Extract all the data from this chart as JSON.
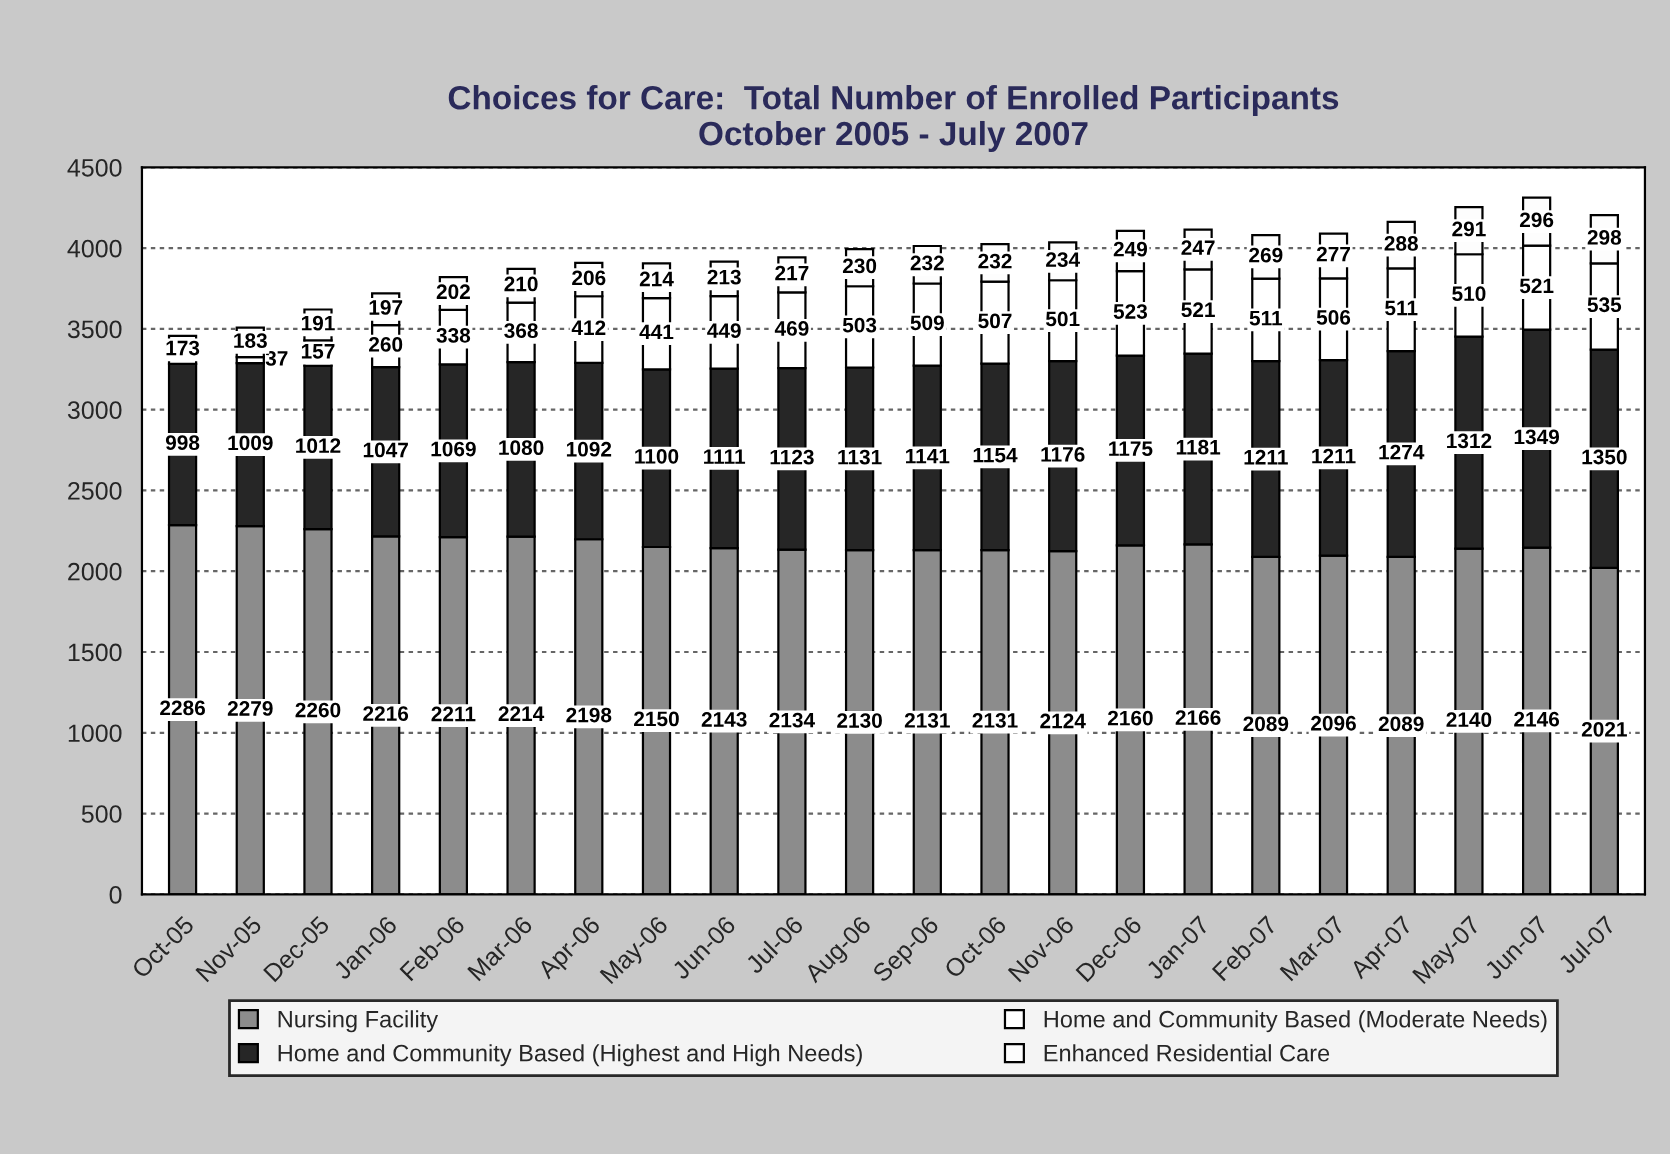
{
  "chart_data": {
    "type": "bar",
    "title": "Choices for Care:  Total Number of Enrolled Participants\nOctober 2005 - July 2007",
    "categories": [
      "Oct-05",
      "Nov-05",
      "Dec-05",
      "Jan-06",
      "Feb-06",
      "Mar-06",
      "Apr-06",
      "May-06",
      "Jun-06",
      "Jul-06",
      "Aug-06",
      "Sep-06",
      "Oct-06",
      "Nov-06",
      "Dec-06",
      "Jan-07",
      "Feb-07",
      "Mar-07",
      "Apr-07",
      "May-07",
      "Jun-07",
      "Jul-07"
    ],
    "stacked": true,
    "series": [
      {
        "name": "Nursing Facility",
        "color": "#8c8c8c",
        "values": [
          2286,
          2279,
          2260,
          2216,
          2211,
          2214,
          2198,
          2150,
          2143,
          2134,
          2130,
          2131,
          2131,
          2124,
          2160,
          2166,
          2089,
          2096,
          2089,
          2140,
          2146,
          2021
        ]
      },
      {
        "name": "Home and Community Based (Highest and High Needs)",
        "color": "#262626",
        "values": [
          998,
          1009,
          1012,
          1047,
          1069,
          1080,
          1092,
          1100,
          1111,
          1123,
          1131,
          1141,
          1154,
          1176,
          1175,
          1181,
          1211,
          1211,
          1274,
          1312,
          1349,
          1350
        ]
      },
      {
        "name": "Home and Community Based (Moderate Needs)",
        "color": "#ffffff",
        "values": [
          null,
          37,
          157,
          260,
          338,
          368,
          412,
          441,
          449,
          469,
          503,
          509,
          507,
          501,
          523,
          521,
          511,
          506,
          511,
          510,
          521,
          535
        ]
      },
      {
        "name": "Enhanced Residential Care",
        "color": "#fdfdfd",
        "values": [
          173,
          183,
          191,
          197,
          202,
          210,
          206,
          214,
          213,
          217,
          230,
          232,
          232,
          234,
          249,
          247,
          269,
          277,
          288,
          291,
          296,
          298
        ]
      }
    ],
    "ylim": [
      0,
      4500
    ],
    "yticks": [
      0,
      500,
      1000,
      1500,
      2000,
      2500,
      3000,
      3500,
      4000,
      4500
    ],
    "grid": "y",
    "legend": "bottom",
    "data_labels": true
  }
}
